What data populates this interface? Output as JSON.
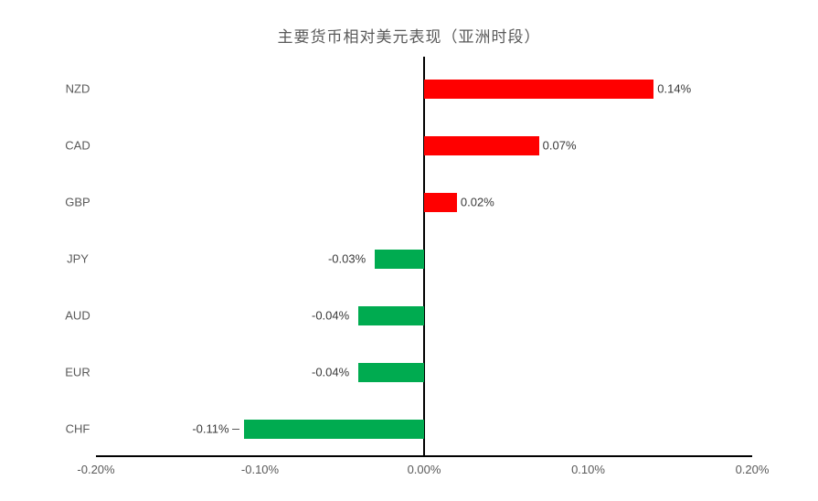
{
  "chart_data": {
    "type": "bar",
    "orientation": "horizontal",
    "title": "主要货币相对美元表现（亚洲时段）",
    "xlabel": "",
    "ylabel": "",
    "categories": [
      "NZD",
      "CAD",
      "GBP",
      "JPY",
      "AUD",
      "EUR",
      "CHF"
    ],
    "values": [
      0.14,
      0.07,
      0.02,
      -0.03,
      -0.04,
      -0.04,
      -0.11
    ],
    "value_labels": [
      "0.14%",
      "0.07%",
      "0.02%",
      "-0.03%",
      "-0.04%",
      "-0.04%",
      "-0.11%"
    ],
    "xlim": [
      -0.2,
      0.2
    ],
    "x_ticks": [
      {
        "value": -0.2,
        "label": "-0.20%"
      },
      {
        "value": -0.1,
        "label": "-0.10%"
      },
      {
        "value": 0.0,
        "label": "0.00%"
      },
      {
        "value": 0.1,
        "label": "0.10%"
      },
      {
        "value": 0.2,
        "label": "0.20%"
      }
    ],
    "grid": false,
    "legend": "none",
    "leader_line_categories": [
      "CHF"
    ],
    "colors": {
      "positive_bar": "#ff0000",
      "negative_bar": "#00ab50",
      "axis_line": "#000000",
      "tick_text": "#595959",
      "category_text": "#595959",
      "value_text": "#3a3a3a",
      "title_text": "#595959",
      "background": "#ffffff"
    }
  }
}
